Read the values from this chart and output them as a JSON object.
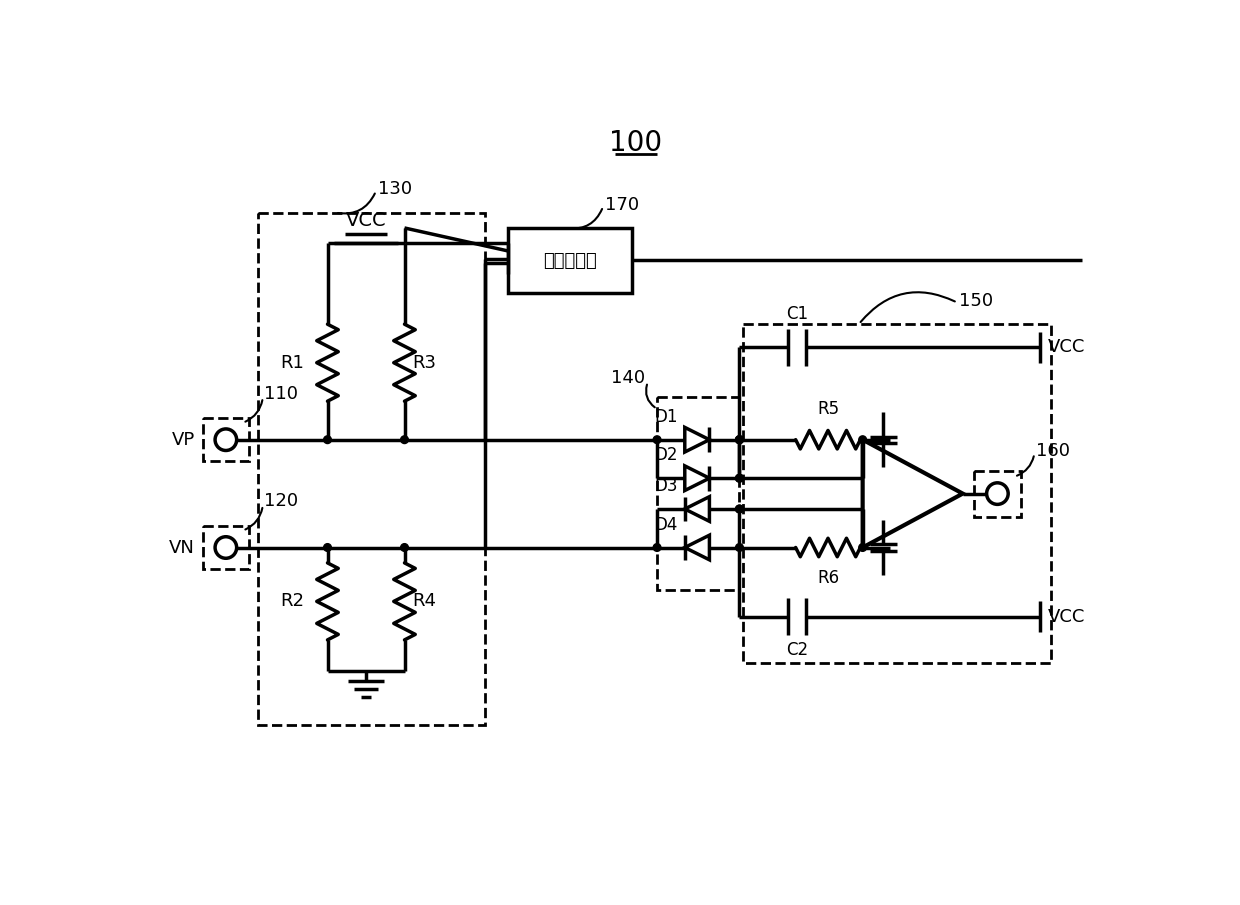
{
  "title": "100",
  "bg": "#ffffff",
  "lc": "#000000",
  "lw": 2.5,
  "fw": 12.4,
  "fh": 9.05,
  "diff_label": "差分收发器",
  "n100": "100",
  "n110": "110",
  "n120": "120",
  "n130": "130",
  "n140": "140",
  "n150": "150",
  "n160": "160",
  "n170": "170",
  "vcc": "VCC",
  "vp": "VP",
  "vn": "VN",
  "r1": "R1",
  "r2": "R2",
  "r3": "R3",
  "r4": "R4",
  "r5": "R5",
  "r6": "R6",
  "c1": "C1",
  "c2": "C2",
  "d1": "D1",
  "d2": "D2",
  "d3": "D3",
  "d4": "D4"
}
